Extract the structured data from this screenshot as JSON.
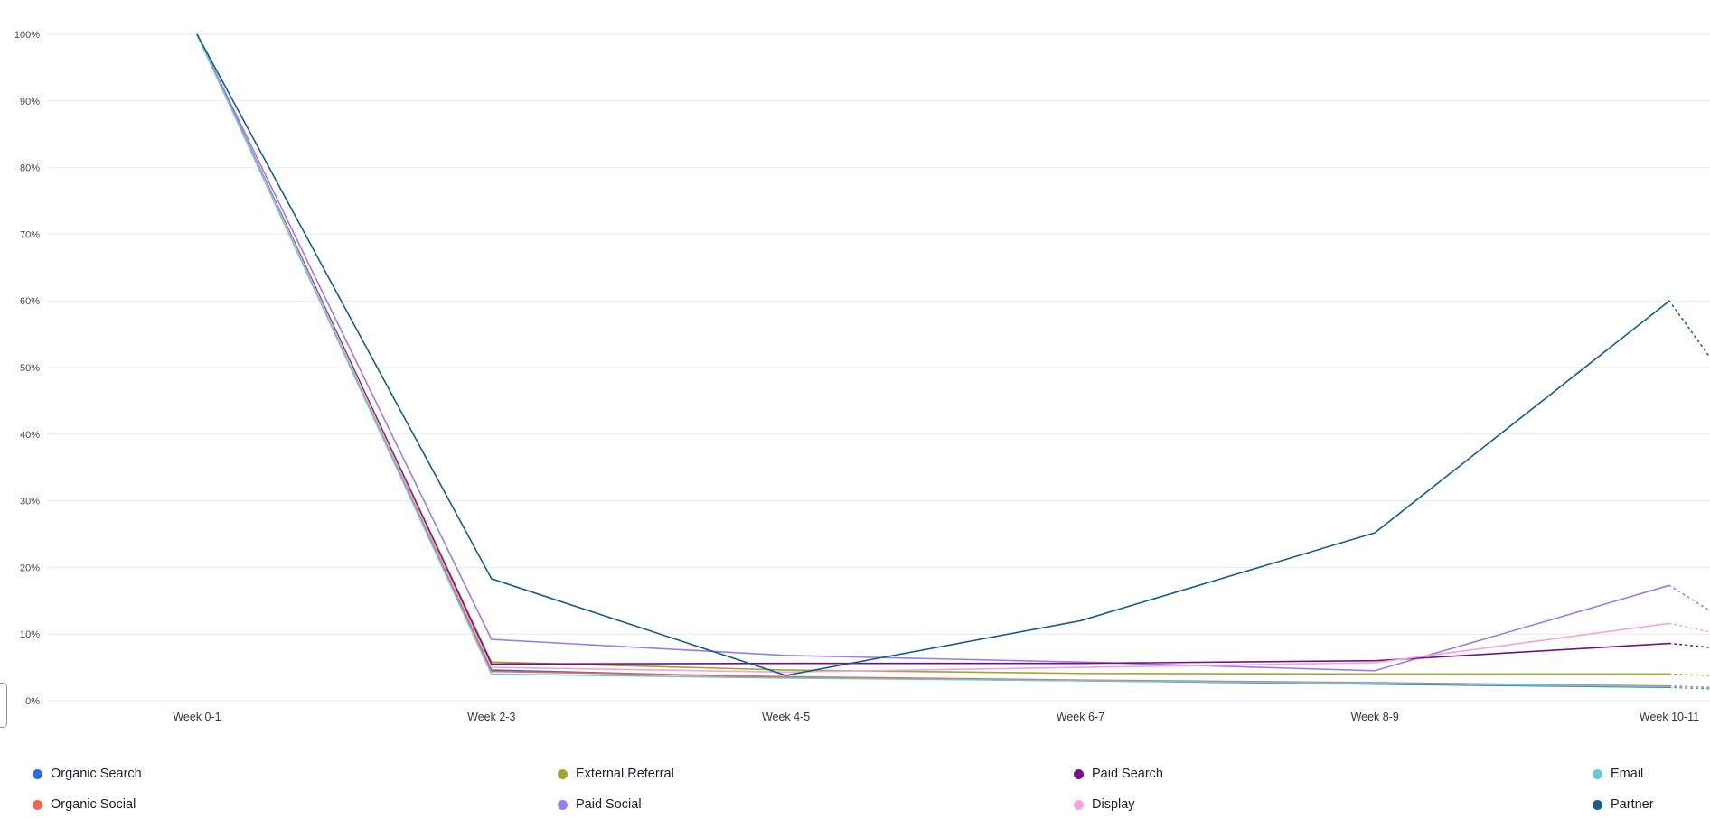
{
  "chart_data": {
    "type": "line",
    "title": "",
    "xlabel": "",
    "ylabel": "",
    "categories": [
      "Week 0-1",
      "Week 2-3",
      "Week 4-5",
      "Week 6-7",
      "Week 8-9",
      "Week 10-11"
    ],
    "y_ticks": [
      "0%",
      "10%",
      "20%",
      "30%",
      "40%",
      "50%",
      "60%",
      "70%",
      "80%",
      "90%",
      "100%"
    ],
    "y_tick_values": [
      0,
      10,
      20,
      30,
      40,
      50,
      60,
      70,
      80,
      90,
      100
    ],
    "ylim": [
      0,
      100
    ],
    "grid": "horizontal",
    "legend_position": "bottom",
    "projection_style": "dotted continuation past last period",
    "series": [
      {
        "name": "Organic Search",
        "color": "#2e6de0",
        "values": [
          100,
          4.6,
          3.5,
          3.0,
          2.5,
          2.0
        ],
        "projected_next": 1.8
      },
      {
        "name": "Organic Social",
        "color": "#f2664b",
        "values": [
          100,
          4.4,
          3.6,
          3.1,
          2.7,
          2.2
        ],
        "projected_next": 2.0
      },
      {
        "name": "External Referral",
        "color": "#9ca832",
        "values": [
          100,
          5.8,
          4.6,
          4.1,
          4.0,
          4.0
        ],
        "projected_next": 3.8
      },
      {
        "name": "Paid Social",
        "color": "#9b7bf0",
        "values": [
          100,
          9.2,
          6.8,
          5.8,
          4.5,
          17.3
        ],
        "projected_next": 13.5
      },
      {
        "name": "Paid Search",
        "color": "#740f87",
        "values": [
          100,
          5.5,
          5.6,
          5.6,
          6.0,
          8.6
        ],
        "projected_next": 8.0
      },
      {
        "name": "Display",
        "color": "#f5a3da",
        "values": [
          100,
          5.0,
          4.3,
          5.0,
          5.7,
          11.6
        ],
        "projected_next": 10.3
      },
      {
        "name": "Email",
        "color": "#66ccd0",
        "values": [
          100,
          4.0,
          3.4,
          3.0,
          2.6,
          2.1
        ],
        "projected_next": 1.9
      },
      {
        "name": "Partner",
        "color": "#175d8d",
        "values": [
          100,
          18.3,
          3.8,
          12.0,
          25.2,
          60.0
        ],
        "projected_next": 51.5
      }
    ],
    "colors": {
      "gridline": "#e8e9ec",
      "y_axis_label": "#454b56",
      "x_axis_label": "#31363f",
      "legend_label": "#1c212b"
    }
  }
}
